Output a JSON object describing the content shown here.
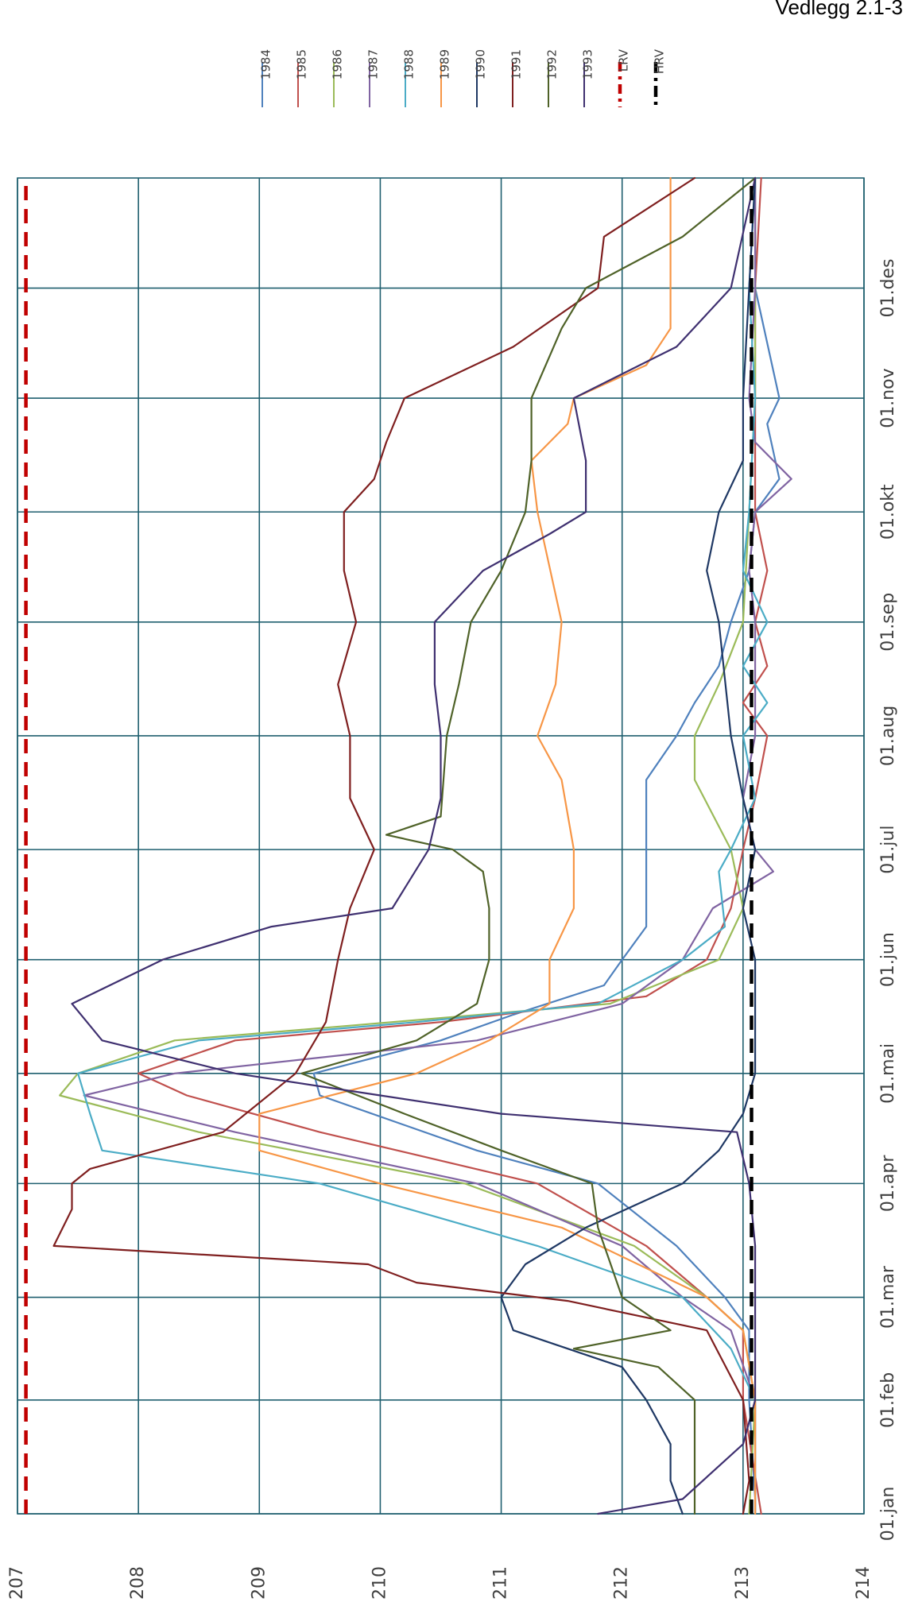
{
  "header": {
    "label": "Vedlegg 2.1-3"
  },
  "chart_data": {
    "type": "line",
    "orientation": "rotated-90-clockwise",
    "x_type": "day-of-year",
    "x_ticks": [
      "01.jan",
      "01.feb",
      "01.mar",
      "01.apr",
      "01.mai",
      "01.jun",
      "01.jul",
      "01.aug",
      "01.sep",
      "01.okt",
      "01.nov",
      "01.des"
    ],
    "y_ticks": [
      207,
      208,
      209,
      210,
      211,
      212,
      213,
      214
    ],
    "ylim": [
      207,
      214
    ],
    "grid": true,
    "grid_color": "#1f5f6f",
    "legend_position": "top",
    "series": [
      {
        "name": "1984",
        "color": "#4f81bd",
        "dash": "solid",
        "points": [
          [
            "01.jan",
            213.1
          ],
          [
            "05.jan",
            213.1
          ],
          [
            "01.feb",
            213.05
          ],
          [
            "20.feb",
            213.05
          ],
          [
            "01.mar",
            212.85
          ],
          [
            "15.mar",
            212.45
          ],
          [
            "01.apr",
            211.8
          ],
          [
            "10.apr",
            210.8
          ],
          [
            "25.apr",
            209.5
          ],
          [
            "01.mai",
            209.45
          ],
          [
            "10.mai",
            210.5
          ],
          [
            "17.mai",
            211.1
          ],
          [
            "25.mai",
            211.85
          ],
          [
            "01.jun",
            212.0
          ],
          [
            "10.jun",
            212.2
          ],
          [
            "01.jul",
            212.2
          ],
          [
            "20.jul",
            212.2
          ],
          [
            "01.aug",
            212.45
          ],
          [
            "10.aug",
            212.6
          ],
          [
            "20.aug",
            212.8
          ],
          [
            "01.sep",
            212.9
          ],
          [
            "15.sep",
            213.05
          ],
          [
            "01.okt",
            213.1
          ],
          [
            "10.okt",
            213.3
          ],
          [
            "25.okt",
            213.2
          ],
          [
            "01.nov",
            213.3
          ],
          [
            "01.des",
            213.1
          ],
          [
            "31.des",
            213.1
          ]
        ]
      },
      {
        "name": "1985",
        "color": "#c0504d",
        "dash": "solid",
        "points": [
          [
            "01.jan",
            213.15
          ],
          [
            "01.feb",
            213.0
          ],
          [
            "20.feb",
            213.0
          ],
          [
            "01.mar",
            212.7
          ],
          [
            "15.mar",
            212.2
          ],
          [
            "01.apr",
            211.3
          ],
          [
            "15.apr",
            209.5
          ],
          [
            "25.apr",
            208.4
          ],
          [
            "01.mai",
            208.0
          ],
          [
            "10.mai",
            208.8
          ],
          [
            "15.mai",
            210.5
          ],
          [
            "22.mai",
            212.2
          ],
          [
            "01.jun",
            212.7
          ],
          [
            "15.jun",
            212.9
          ],
          [
            "01.jul",
            213.0
          ],
          [
            "15.jul",
            213.1
          ],
          [
            "01.aug",
            213.2
          ],
          [
            "10.aug",
            213.0
          ],
          [
            "20.aug",
            213.2
          ],
          [
            "01.sep",
            213.1
          ],
          [
            "15.sep",
            213.2
          ],
          [
            "01.okt",
            213.1
          ],
          [
            "01.nov",
            213.1
          ],
          [
            "01.des",
            213.1
          ],
          [
            "31.des",
            213.15
          ]
        ]
      },
      {
        "name": "1986",
        "color": "#9bbb59",
        "dash": "solid",
        "points": [
          [
            "01.jan",
            213.05
          ],
          [
            "01.feb",
            213.1
          ],
          [
            "20.feb",
            213.0
          ],
          [
            "01.mar",
            212.7
          ],
          [
            "15.mar",
            212.1
          ],
          [
            "01.apr",
            210.7
          ],
          [
            "15.apr",
            208.5
          ],
          [
            "25.apr",
            207.35
          ],
          [
            "01.mai",
            207.5
          ],
          [
            "10.mai",
            208.3
          ],
          [
            "15.mai",
            210.1
          ],
          [
            "20.mai",
            211.9
          ],
          [
            "01.jun",
            212.8
          ],
          [
            "15.jun",
            213.0
          ],
          [
            "01.jul",
            212.9
          ],
          [
            "20.jul",
            212.6
          ],
          [
            "01.aug",
            212.6
          ],
          [
            "15.aug",
            212.8
          ],
          [
            "01.sep",
            213.0
          ],
          [
            "01.okt",
            213.05
          ],
          [
            "01.nov",
            213.1
          ],
          [
            "01.des",
            213.1
          ],
          [
            "31.des",
            213.1
          ]
        ]
      },
      {
        "name": "1987",
        "color": "#8064a2",
        "dash": "solid",
        "points": [
          [
            "01.jan",
            213.1
          ],
          [
            "01.feb",
            213.1
          ],
          [
            "20.feb",
            212.9
          ],
          [
            "01.mar",
            212.5
          ],
          [
            "15.mar",
            212.0
          ],
          [
            "01.apr",
            210.8
          ],
          [
            "15.apr",
            208.8
          ],
          [
            "25.apr",
            207.55
          ],
          [
            "01.mai",
            208.3
          ],
          [
            "10.mai",
            210.8
          ],
          [
            "20.mai",
            212.0
          ],
          [
            "01.jun",
            212.5
          ],
          [
            "15.jun",
            212.75
          ],
          [
            "25.jun",
            213.25
          ],
          [
            "01.jul",
            213.1
          ],
          [
            "15.jul",
            213.0
          ],
          [
            "01.aug",
            213.1
          ],
          [
            "01.sep",
            213.1
          ],
          [
            "15.sep",
            213.05
          ],
          [
            "01.okt",
            213.1
          ],
          [
            "10.okt",
            213.4
          ],
          [
            "20.okt",
            213.1
          ],
          [
            "01.nov",
            213.05
          ],
          [
            "01.des",
            213.1
          ],
          [
            "31.des",
            213.1
          ]
        ]
      },
      {
        "name": "1988",
        "color": "#4bacc6",
        "dash": "solid",
        "points": [
          [
            "01.jan",
            213.1
          ],
          [
            "01.feb",
            213.1
          ],
          [
            "15.feb",
            212.9
          ],
          [
            "01.mar",
            212.5
          ],
          [
            "15.mar",
            211.3
          ],
          [
            "01.apr",
            209.5
          ],
          [
            "10.apr",
            207.7
          ],
          [
            "20.apr",
            207.6
          ],
          [
            "01.mai",
            207.5
          ],
          [
            "10.mai",
            208.5
          ],
          [
            "15.mai",
            210.3
          ],
          [
            "20.mai",
            211.8
          ],
          [
            "01.jun",
            212.5
          ],
          [
            "10.jun",
            212.85
          ],
          [
            "25.jun",
            212.8
          ],
          [
            "01.jul",
            212.9
          ],
          [
            "15.jul",
            213.1
          ],
          [
            "01.aug",
            213.0
          ],
          [
            "10.aug",
            213.2
          ],
          [
            "20.aug",
            213.0
          ],
          [
            "01.sep",
            213.2
          ],
          [
            "15.sep",
            213.0
          ],
          [
            "01.okt",
            213.05
          ],
          [
            "01.nov",
            213.1
          ],
          [
            "01.des",
            213.05
          ],
          [
            "31.des",
            213.1
          ]
        ]
      },
      {
        "name": "1989",
        "color": "#f79646",
        "dash": "solid",
        "points": [
          [
            "01.jan",
            213.1
          ],
          [
            "01.feb",
            213.1
          ],
          [
            "20.feb",
            213.0
          ],
          [
            "01.mar",
            212.7
          ],
          [
            "20.mar",
            211.5
          ],
          [
            "01.apr",
            210.0
          ],
          [
            "10.apr",
            209.0
          ],
          [
            "20.apr",
            209.0
          ],
          [
            "01.mai",
            210.3
          ],
          [
            "10.mai",
            210.9
          ],
          [
            "20.mai",
            211.4
          ],
          [
            "01.jun",
            211.4
          ],
          [
            "15.jun",
            211.6
          ],
          [
            "01.jul",
            211.6
          ],
          [
            "20.jul",
            211.5
          ],
          [
            "01.aug",
            211.3
          ],
          [
            "15.aug",
            211.45
          ],
          [
            "01.sep",
            211.5
          ],
          [
            "01.okt",
            211.3
          ],
          [
            "15.okt",
            211.25
          ],
          [
            "25.okt",
            211.55
          ],
          [
            "01.nov",
            211.6
          ],
          [
            "10.nov",
            212.2
          ],
          [
            "20.nov",
            212.4
          ],
          [
            "01.des",
            212.4
          ],
          [
            "31.des",
            212.4
          ]
        ]
      },
      {
        "name": "1990",
        "color": "#1f3864",
        "dash": "solid",
        "points": [
          [
            "01.jan",
            212.5
          ],
          [
            "10.jan",
            212.4
          ],
          [
            "20.jan",
            212.4
          ],
          [
            "01.feb",
            212.2
          ],
          [
            "10.feb",
            212.0
          ],
          [
            "20.feb",
            211.1
          ],
          [
            "01.mar",
            211.0
          ],
          [
            "10.mar",
            211.2
          ],
          [
            "20.mar",
            211.7
          ],
          [
            "01.apr",
            212.5
          ],
          [
            "10.apr",
            212.8
          ],
          [
            "20.apr",
            213.0
          ],
          [
            "01.mai",
            213.1
          ],
          [
            "01.jun",
            213.1
          ],
          [
            "15.jun",
            213.0
          ],
          [
            "01.jul",
            213.1
          ],
          [
            "15.jul",
            213.0
          ],
          [
            "01.aug",
            212.9
          ],
          [
            "01.sep",
            212.8
          ],
          [
            "15.sep",
            212.7
          ],
          [
            "01.okt",
            212.8
          ],
          [
            "15.okt",
            213.0
          ],
          [
            "01.nov",
            213.0
          ],
          [
            "01.des",
            213.05
          ],
          [
            "31.des",
            213.1
          ]
        ]
      },
      {
        "name": "1991",
        "color": "#7f1f1f",
        "dash": "solid",
        "points": [
          [
            "01.jan",
            213.0
          ],
          [
            "10.jan",
            213.05
          ],
          [
            "01.feb",
            213.0
          ],
          [
            "20.feb",
            212.7
          ],
          [
            "28.feb",
            211.55
          ],
          [
            "05.mar",
            210.3
          ],
          [
            "10.mar",
            209.9
          ],
          [
            "15.mar",
            207.3
          ],
          [
            "25.mar",
            207.45
          ],
          [
            "01.apr",
            207.45
          ],
          [
            "05.apr",
            207.6
          ],
          [
            "15.apr",
            208.7
          ],
          [
            "01.mai",
            209.3
          ],
          [
            "15.mai",
            209.55
          ],
          [
            "01.jun",
            209.65
          ],
          [
            "15.jun",
            209.75
          ],
          [
            "01.jul",
            209.95
          ],
          [
            "15.jul",
            209.75
          ],
          [
            "01.aug",
            209.75
          ],
          [
            "15.aug",
            209.65
          ],
          [
            "01.sep",
            209.8
          ],
          [
            "15.sep",
            209.7
          ],
          [
            "01.okt",
            209.7
          ],
          [
            "10.okt",
            209.95
          ],
          [
            "20.okt",
            210.05
          ],
          [
            "01.nov",
            210.2
          ],
          [
            "15.nov",
            211.1
          ],
          [
            "01.des",
            211.8
          ],
          [
            "15.des",
            211.85
          ],
          [
            "31.des",
            212.6
          ]
        ]
      },
      {
        "name": "1992",
        "color": "#4f6228",
        "dash": "solid",
        "points": [
          [
            "01.jan",
            212.6
          ],
          [
            "01.feb",
            212.6
          ],
          [
            "10.feb",
            212.3
          ],
          [
            "15.feb",
            211.6
          ],
          [
            "20.feb",
            212.4
          ],
          [
            "01.mar",
            212.0
          ],
          [
            "20.mar",
            211.8
          ],
          [
            "01.apr",
            211.75
          ],
          [
            "10.apr",
            211.0
          ],
          [
            "20.apr",
            210.2
          ],
          [
            "01.mai",
            209.35
          ],
          [
            "10.mai",
            210.3
          ],
          [
            "20.mai",
            210.8
          ],
          [
            "01.jun",
            210.9
          ],
          [
            "15.jun",
            210.9
          ],
          [
            "25.jun",
            210.85
          ],
          [
            "01.jul",
            210.6
          ],
          [
            "05.jul",
            210.05
          ],
          [
            "10.jul",
            210.5
          ],
          [
            "01.aug",
            210.55
          ],
          [
            "15.aug",
            210.65
          ],
          [
            "01.sep",
            210.75
          ],
          [
            "15.sep",
            211.0
          ],
          [
            "01.okt",
            211.2
          ],
          [
            "15.okt",
            211.25
          ],
          [
            "01.nov",
            211.25
          ],
          [
            "20.nov",
            211.5
          ],
          [
            "01.des",
            211.7
          ],
          [
            "15.des",
            212.5
          ],
          [
            "31.des",
            213.1
          ]
        ]
      },
      {
        "name": "1993",
        "color": "#3f3070",
        "dash": "solid",
        "points": [
          [
            "01.jan",
            211.8
          ],
          [
            "05.jan",
            212.5
          ],
          [
            "20.jan",
            213.0
          ],
          [
            "01.feb",
            213.1
          ],
          [
            "01.mar",
            213.1
          ],
          [
            "15.mar",
            213.1
          ],
          [
            "01.apr",
            213.05
          ],
          [
            "15.apr",
            212.95
          ],
          [
            "20.apr",
            211.0
          ],
          [
            "25.apr",
            210.0
          ],
          [
            "01.mai",
            208.8
          ],
          [
            "10.mai",
            207.7
          ],
          [
            "20.mai",
            207.45
          ],
          [
            "01.jun",
            208.2
          ],
          [
            "10.jun",
            209.1
          ],
          [
            "15.jun",
            210.1
          ],
          [
            "01.jul",
            210.4
          ],
          [
            "15.jul",
            210.5
          ],
          [
            "01.aug",
            210.5
          ],
          [
            "15.aug",
            210.45
          ],
          [
            "01.sep",
            210.45
          ],
          [
            "15.sep",
            210.85
          ],
          [
            "25.sep",
            211.4
          ],
          [
            "01.okt",
            211.7
          ],
          [
            "15.okt",
            211.7
          ],
          [
            "01.nov",
            211.6
          ],
          [
            "15.nov",
            212.45
          ],
          [
            "01.des",
            212.9
          ],
          [
            "31.des",
            213.1
          ]
        ]
      },
      {
        "name": "LRV",
        "color": "#c00000",
        "dash": "dashed",
        "points": [
          [
            "01.jan",
            207.07
          ],
          [
            "31.des",
            207.07
          ]
        ]
      },
      {
        "name": "HRV",
        "color": "#000000",
        "dash": "dashed",
        "points": [
          [
            "01.jan",
            213.07
          ],
          [
            "31.des",
            213.07
          ]
        ]
      }
    ]
  }
}
